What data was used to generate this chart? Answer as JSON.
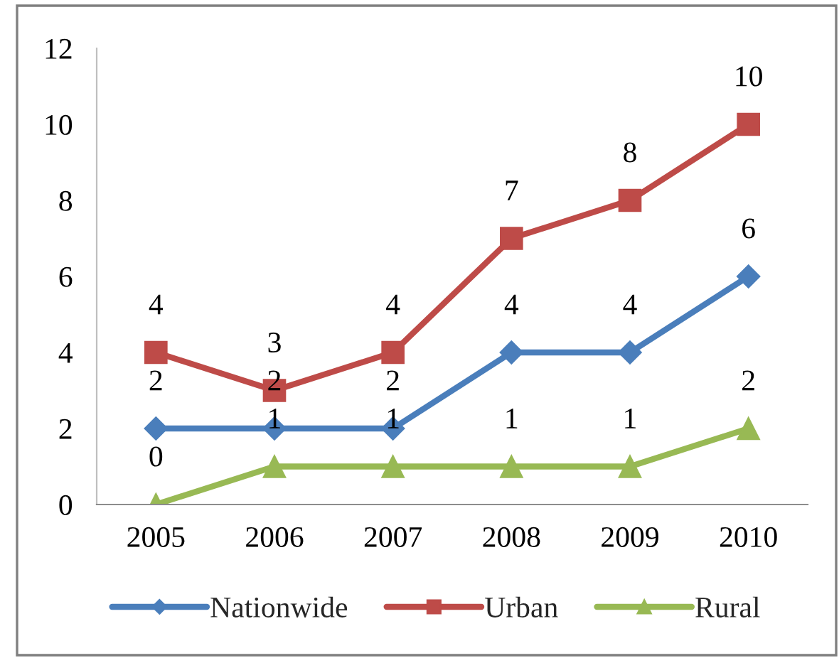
{
  "chart_data": {
    "type": "line",
    "categories": [
      "2005",
      "2006",
      "2007",
      "2008",
      "2009",
      "2010"
    ],
    "series": [
      {
        "name": "Nationwide",
        "color": "#4a7ebb",
        "marker": "diamond",
        "values": [
          2,
          2,
          2,
          4,
          4,
          6
        ]
      },
      {
        "name": "Urban",
        "color": "#be4b48",
        "marker": "square",
        "values": [
          4,
          3,
          4,
          7,
          8,
          10
        ]
      },
      {
        "name": "Rural",
        "color": "#98b954",
        "marker": "triangle",
        "values": [
          0,
          1,
          1,
          1,
          1,
          2
        ]
      }
    ],
    "ylim": [
      0,
      12
    ],
    "yticks": [
      0,
      2,
      4,
      6,
      8,
      10,
      12
    ],
    "grid": false,
    "legend": "bottom",
    "data_labels": true,
    "line_style": "solid"
  }
}
